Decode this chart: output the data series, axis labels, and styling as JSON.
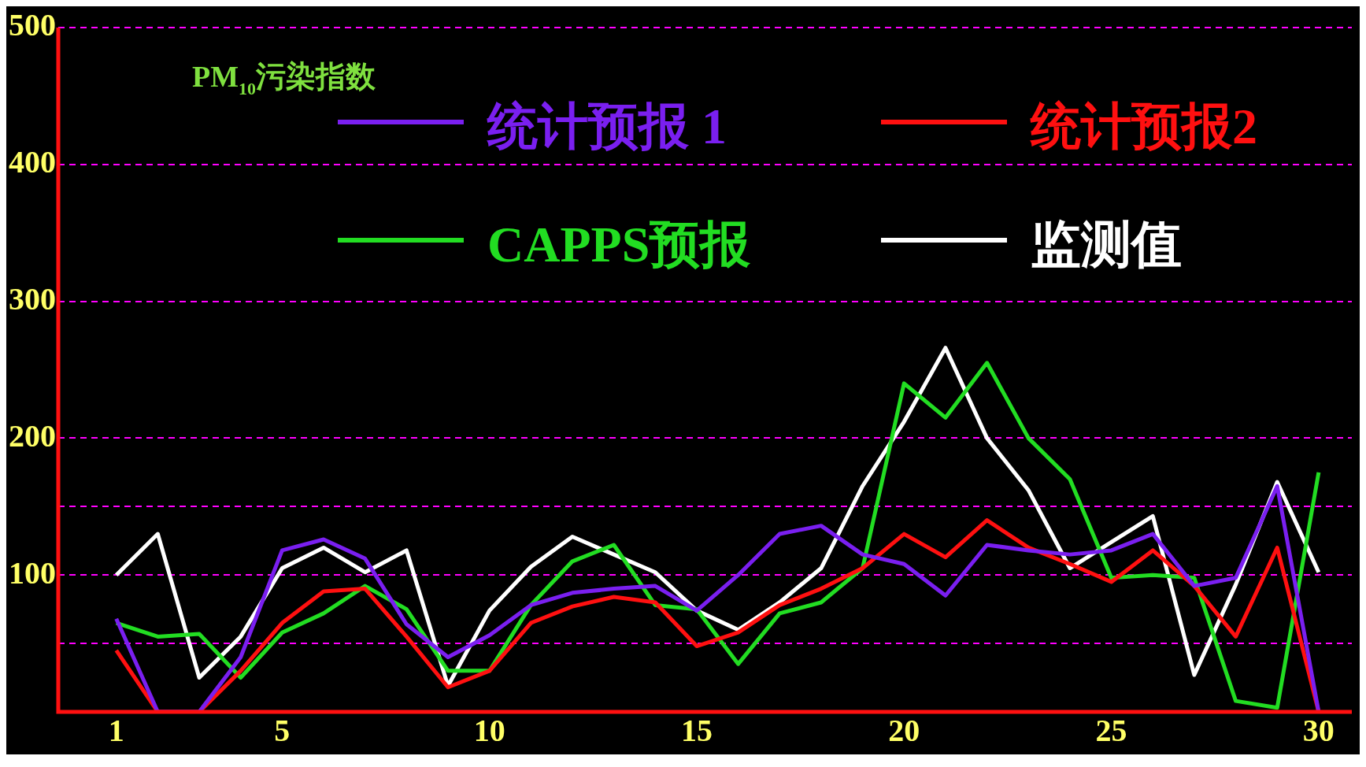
{
  "chart_data": {
    "type": "line",
    "ylabel": "PM$_{10}$污染指数",
    "x": [
      1,
      2,
      3,
      4,
      5,
      6,
      7,
      8,
      9,
      10,
      11,
      12,
      13,
      14,
      15,
      16,
      17,
      18,
      19,
      20,
      21,
      22,
      23,
      24,
      25,
      26,
      27,
      28,
      29,
      30
    ],
    "series": [
      {
        "name": "统计预报 1",
        "color": "#7a1ff0",
        "values": [
          68,
          0,
          0,
          40,
          118,
          126,
          112,
          64,
          40,
          56,
          78,
          87,
          90,
          92,
          74,
          100,
          130,
          136,
          115,
          108,
          85,
          122,
          118,
          115,
          118,
          130,
          92,
          98,
          165,
          0
        ]
      },
      {
        "name": "统计预报2",
        "color": "#ff1010",
        "values": [
          45,
          0,
          0,
          30,
          65,
          88,
          90,
          55,
          18,
          30,
          65,
          77,
          84,
          80,
          48,
          58,
          78,
          90,
          105,
          130,
          113,
          140,
          120,
          108,
          95,
          118,
          92,
          55,
          120,
          0
        ]
      },
      {
        "name": "CAPPS预报",
        "color": "#22dd22",
        "values": [
          65,
          55,
          57,
          25,
          58,
          72,
          92,
          75,
          30,
          30,
          78,
          110,
          122,
          78,
          75,
          35,
          72,
          80,
          105,
          240,
          215,
          255,
          200,
          170,
          98,
          100,
          98,
          8,
          3,
          175
        ]
      },
      {
        "name": "监测值",
        "color": "#ffffff",
        "values": [
          100,
          130,
          25,
          55,
          105,
          120,
          102,
          118,
          19,
          74,
          106,
          128,
          115,
          102,
          74,
          60,
          80,
          105,
          165,
          212,
          266,
          200,
          162,
          105,
          124,
          143,
          27,
          93,
          168,
          102
        ]
      }
    ],
    "xlim": [
      -0.4,
      30.8
    ],
    "xticks": [
      1,
      5,
      10,
      15,
      20,
      25,
      30
    ],
    "ylim": [
      0,
      500
    ],
    "yticks": [
      {
        "value": 50,
        "label": null
      },
      100,
      {
        "value": 150,
        "label": null
      },
      200,
      300,
      400,
      500
    ],
    "grid": "y",
    "legend": "top",
    "line_style": "solid",
    "marker": "none"
  }
}
